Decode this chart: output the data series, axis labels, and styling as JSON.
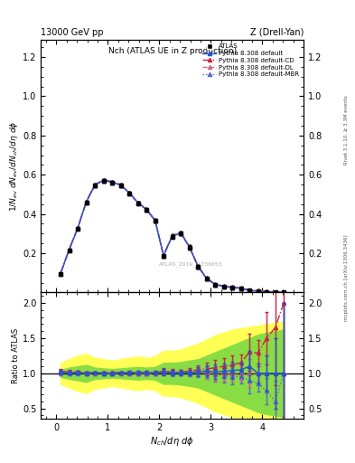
{
  "title_top": "13000 GeV pp",
  "title_right": "Z (Drell-Yan)",
  "plot_title": "Nch (ATLAS UE in Z production)",
  "ylabel_main": "1/N_ev dN_ev/dN_ch/dη dφ",
  "ylabel_ratio": "Ratio to ATLAS",
  "xlabel": "N_{ch}/dη dφ",
  "watermark": "ATLAS_2019_I1736653",
  "rivet_text": "Rivet 3.1.10, ≥ 3.3M events",
  "arxiv_text": "mcplots.cern.ch [arXiv:1306.3436]",
  "ylim_main": [
    0.0,
    1.29
  ],
  "ylim_ratio": [
    0.35,
    2.15
  ],
  "xlim": [
    -0.3,
    4.8
  ],
  "yticks_main": [
    0.2,
    0.4,
    0.6,
    0.8,
    1.0,
    1.2
  ],
  "yticks_ratio": [
    0.5,
    1.0,
    1.5,
    2.0
  ],
  "xticks": [
    0,
    1,
    2,
    3,
    4
  ],
  "data_x": [
    0.083,
    0.25,
    0.417,
    0.583,
    0.75,
    0.917,
    1.083,
    1.25,
    1.417,
    1.583,
    1.75,
    1.917,
    2.083,
    2.25,
    2.417,
    2.583,
    2.75,
    2.917,
    3.083,
    3.25,
    3.417,
    3.583,
    3.75,
    3.917,
    4.083,
    4.25,
    4.417
  ],
  "data_y": [
    0.095,
    0.215,
    0.325,
    0.46,
    0.545,
    0.57,
    0.56,
    0.545,
    0.505,
    0.455,
    0.42,
    0.365,
    0.185,
    0.285,
    0.3,
    0.23,
    0.13,
    0.07,
    0.04,
    0.03,
    0.025,
    0.02,
    0.01,
    0.007,
    0.004,
    0.002,
    0.001
  ],
  "data_yerr": [
    0.003,
    0.005,
    0.007,
    0.009,
    0.01,
    0.01,
    0.01,
    0.01,
    0.01,
    0.01,
    0.01,
    0.01,
    0.008,
    0.01,
    0.01,
    0.01,
    0.008,
    0.006,
    0.004,
    0.003,
    0.003,
    0.002,
    0.002,
    0.001,
    0.001,
    0.001,
    0.001
  ],
  "py_x": [
    0.083,
    0.25,
    0.417,
    0.583,
    0.75,
    0.917,
    1.083,
    1.25,
    1.417,
    1.583,
    1.75,
    1.917,
    2.083,
    2.25,
    2.417,
    2.583,
    2.75,
    2.917,
    3.083,
    3.25,
    3.417,
    3.583,
    3.75,
    3.917,
    4.083,
    4.25,
    4.417
  ],
  "py_default_y": [
    0.097,
    0.218,
    0.328,
    0.462,
    0.548,
    0.572,
    0.562,
    0.548,
    0.508,
    0.458,
    0.423,
    0.368,
    0.188,
    0.288,
    0.303,
    0.233,
    0.133,
    0.072,
    0.041,
    0.031,
    0.026,
    0.021,
    0.011,
    0.007,
    0.004,
    0.002,
    0.001
  ],
  "py_cd_y": [
    0.098,
    0.22,
    0.33,
    0.465,
    0.55,
    0.575,
    0.565,
    0.55,
    0.51,
    0.46,
    0.425,
    0.37,
    0.19,
    0.29,
    0.306,
    0.236,
    0.136,
    0.074,
    0.043,
    0.033,
    0.028,
    0.023,
    0.013,
    0.009,
    0.006,
    0.004,
    0.002
  ],
  "py_dl_y": [
    0.096,
    0.217,
    0.327,
    0.461,
    0.547,
    0.571,
    0.561,
    0.547,
    0.507,
    0.457,
    0.422,
    0.367,
    0.187,
    0.287,
    0.302,
    0.232,
    0.132,
    0.071,
    0.04,
    0.03,
    0.025,
    0.02,
    0.01,
    0.007,
    0.004,
    0.002,
    0.001
  ],
  "py_mbr_y": [
    0.096,
    0.216,
    0.326,
    0.46,
    0.546,
    0.57,
    0.56,
    0.546,
    0.506,
    0.456,
    0.421,
    0.366,
    0.186,
    0.286,
    0.301,
    0.231,
    0.131,
    0.07,
    0.039,
    0.029,
    0.024,
    0.019,
    0.009,
    0.006,
    0.003,
    0.001,
    0.001
  ],
  "color_default": "#2255cc",
  "color_cd": "#cc2244",
  "color_dl": "#cc6688",
  "color_mbr": "#5566cc",
  "color_data": "#111111",
  "green_band_lower": [
    0.95,
    0.92,
    0.9,
    0.88,
    0.92,
    0.93,
    0.94,
    0.93,
    0.92,
    0.91,
    0.92,
    0.91,
    0.85,
    0.85,
    0.84,
    0.82,
    0.8,
    0.75,
    0.7,
    0.65,
    0.6,
    0.55,
    0.5,
    0.45,
    0.42,
    0.4,
    0.38
  ],
  "green_band_upper": [
    1.05,
    1.08,
    1.1,
    1.12,
    1.08,
    1.07,
    1.06,
    1.07,
    1.08,
    1.09,
    1.08,
    1.09,
    1.15,
    1.15,
    1.16,
    1.18,
    1.2,
    1.25,
    1.3,
    1.35,
    1.4,
    1.45,
    1.5,
    1.55,
    1.58,
    1.6,
    1.62
  ],
  "yellow_band_lower": [
    0.85,
    0.8,
    0.75,
    0.72,
    0.78,
    0.8,
    0.82,
    0.8,
    0.78,
    0.76,
    0.78,
    0.76,
    0.68,
    0.68,
    0.66,
    0.62,
    0.58,
    0.52,
    0.46,
    0.42,
    0.38,
    0.36,
    0.34,
    0.32,
    0.3,
    0.28,
    0.26
  ],
  "yellow_band_upper": [
    1.15,
    1.2,
    1.25,
    1.28,
    1.22,
    1.2,
    1.18,
    1.2,
    1.22,
    1.24,
    1.22,
    1.24,
    1.32,
    1.32,
    1.34,
    1.38,
    1.42,
    1.48,
    1.54,
    1.58,
    1.62,
    1.64,
    1.66,
    1.68,
    1.7,
    1.72,
    1.74
  ],
  "ratio_def": [
    1.02,
    1.01,
    1.01,
    1.0,
    1.01,
    1.0,
    1.0,
    1.01,
    1.01,
    1.01,
    1.01,
    1.01,
    1.02,
    1.01,
    1.01,
    1.01,
    1.02,
    1.03,
    1.02,
    1.03,
    1.04,
    1.05,
    1.1,
    1.0,
    1.0,
    1.0,
    1.0
  ],
  "ratio_cd": [
    1.03,
    1.02,
    1.02,
    1.01,
    1.01,
    1.01,
    1.01,
    1.01,
    1.01,
    1.01,
    1.01,
    1.01,
    1.03,
    1.02,
    1.02,
    1.03,
    1.05,
    1.06,
    1.08,
    1.1,
    1.12,
    1.15,
    1.3,
    1.29,
    1.5,
    1.65,
    2.0
  ],
  "ratio_dl": [
    1.01,
    1.01,
    1.01,
    1.0,
    1.0,
    1.0,
    1.0,
    1.0,
    1.0,
    1.0,
    1.0,
    1.0,
    1.01,
    1.01,
    1.01,
    1.01,
    1.02,
    1.01,
    1.0,
    1.0,
    1.0,
    1.0,
    1.0,
    1.0,
    1.0,
    1.0,
    1.0
  ],
  "ratio_mbr": [
    1.01,
    1.0,
    1.0,
    1.0,
    1.0,
    1.0,
    1.0,
    1.0,
    1.0,
    1.0,
    1.0,
    1.0,
    1.01,
    1.0,
    1.0,
    1.0,
    1.01,
    1.0,
    0.98,
    0.97,
    0.96,
    0.95,
    0.9,
    0.86,
    0.75,
    0.6,
    1.0
  ],
  "bg_color": "#ffffff"
}
